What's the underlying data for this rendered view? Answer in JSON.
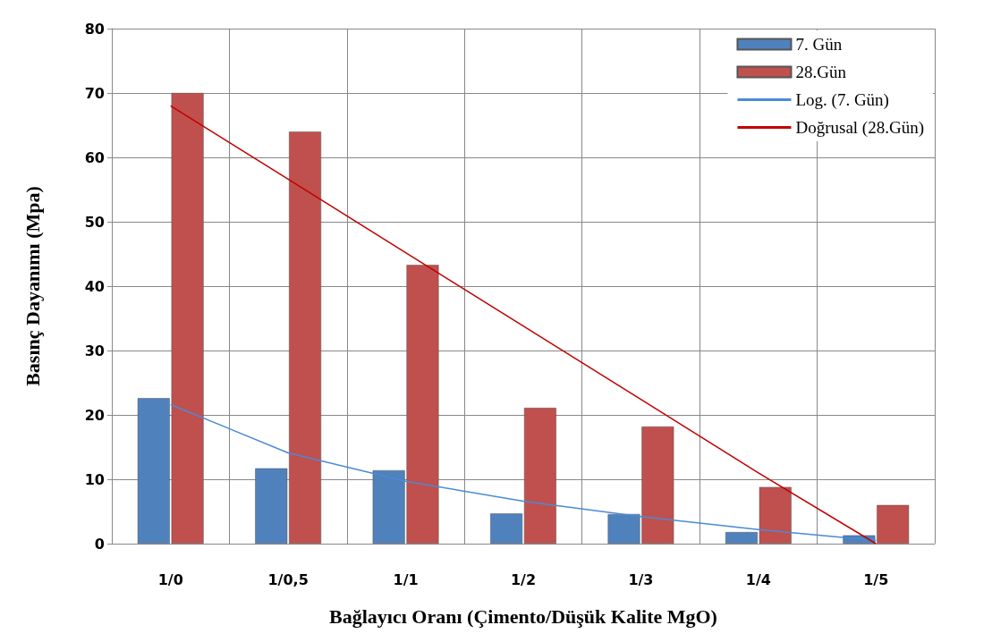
{
  "chart_data": {
    "type": "bar",
    "xlabel": "Bağlayıcı Oranı (Çimento/Düşük Kalite MgO)",
    "ylabel": "Basınç Dayanımı (Mpa)",
    "categories": [
      "1/0",
      "1/0,5",
      "1/1",
      "1/2",
      "1/3",
      "1/4",
      "1/5"
    ],
    "series": [
      {
        "name": "7. Gün",
        "color": "#4f81bd",
        "values": [
          22.6,
          11.7,
          11.4,
          4.7,
          4.6,
          1.8,
          1.3
        ]
      },
      {
        "name": "28.Gün",
        "color": "#c0504d",
        "values": [
          70,
          64,
          43.3,
          21.1,
          18.2,
          8.8,
          6
        ]
      },
      {
        "name": "Log. (7. Gün)",
        "type": "line",
        "color": "#4a8ad6",
        "values": [
          21.6,
          14.1,
          9.7,
          6.6,
          4.2,
          2.2,
          0.5
        ]
      },
      {
        "name": "Doğrusal (28.Gün)",
        "type": "line",
        "color": "#c00000",
        "values": [
          68,
          56.6,
          45.2,
          33.8,
          22.4,
          11,
          0
        ]
      }
    ],
    "ylim": [
      0,
      80
    ],
    "yticks": [
      0,
      10,
      20,
      30,
      40,
      50,
      60,
      70,
      80
    ],
    "grid": true,
    "legend": "top right",
    "marker": "none",
    "line_style": "solid"
  }
}
